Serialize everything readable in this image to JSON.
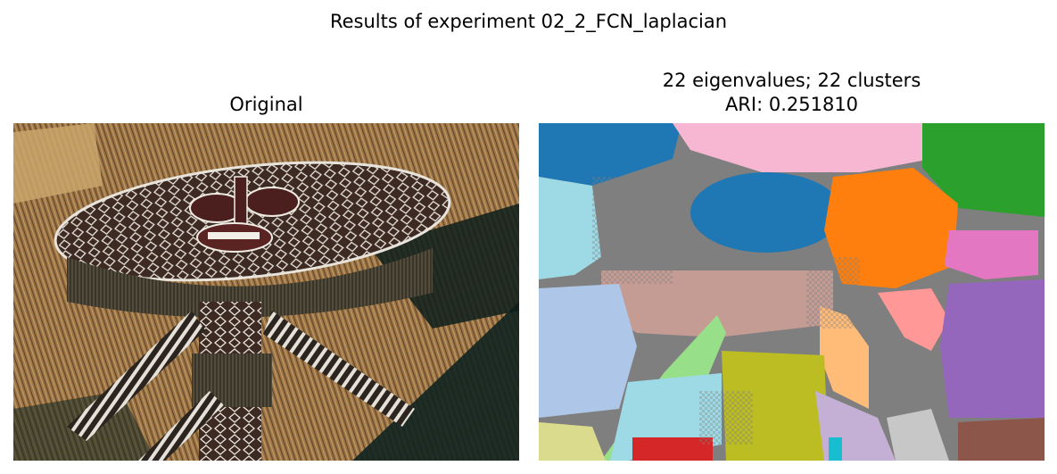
{
  "figure": {
    "suptitle": "Results of experiment 02_2_FCN_laplacian"
  },
  "panels": [
    {
      "id": "original",
      "title_lines": [
        "Original"
      ],
      "content": "photo"
    },
    {
      "id": "segmentation",
      "title_lines": [
        "22 eigenvalues; 22 clusters",
        "ARI: 0.251810"
      ],
      "content": "cluster-map"
    }
  ],
  "colors": {
    "background": "#ffffff",
    "cluster_palette": [
      "#1f77b4",
      "#ff7f0e",
      "#2ca02c",
      "#d62728",
      "#9467bd",
      "#8c564b",
      "#e377c2",
      "#7f7f7f",
      "#bcbd22",
      "#17becf",
      "#aec7e8",
      "#ffbb78",
      "#98df8a",
      "#ff9896",
      "#c5b0d5",
      "#c49c94",
      "#f7b6d2",
      "#c7c7c7",
      "#dbdb8d",
      "#9edae5"
    ]
  }
}
